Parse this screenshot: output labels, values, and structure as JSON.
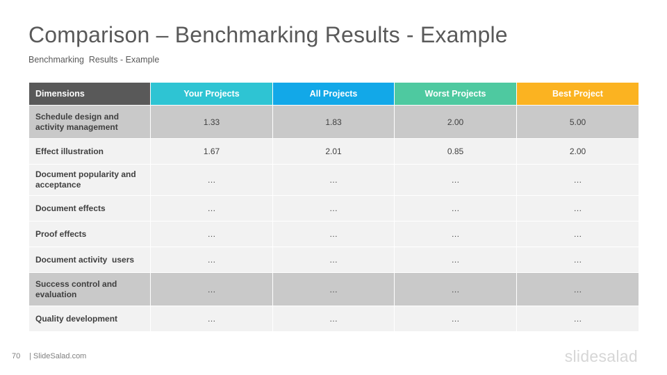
{
  "title": "Comparison – Benchmarking Results - Example",
  "subtitle": "Benchmarking  Results - Example",
  "table": {
    "headers": [
      {
        "label": "Dimensions",
        "color": "#595959"
      },
      {
        "label": "Your Projects",
        "color": "#2ec4d3"
      },
      {
        "label": "All Projects",
        "color": "#12a8e8"
      },
      {
        "label": "Worst Projects",
        "color": "#4ec9a0"
      },
      {
        "label": "Best Project",
        "color": "#fbb321"
      }
    ],
    "rows": [
      {
        "label": "Schedule design and activity management",
        "values": [
          "1.33",
          "1.83",
          "2.00",
          "5.00"
        ],
        "shade": "dark"
      },
      {
        "label": "Effect illustration",
        "values": [
          "1.67",
          "2.01",
          "0.85",
          "2.00"
        ],
        "shade": "light"
      },
      {
        "label": "Document popularity and acceptance",
        "values": [
          "…",
          "…",
          "…",
          "…"
        ],
        "shade": "light"
      },
      {
        "label": "Document effects",
        "values": [
          "…",
          "…",
          "…",
          "…"
        ],
        "shade": "light"
      },
      {
        "label": "Proof effects",
        "values": [
          "…",
          "…",
          "…",
          "…"
        ],
        "shade": "light"
      },
      {
        "label": "Document activity  users",
        "values": [
          "…",
          "…",
          "…",
          "…"
        ],
        "shade": "light"
      },
      {
        "label": "Success control and evaluation",
        "values": [
          "…",
          "…",
          "…",
          "…"
        ],
        "shade": "dark"
      },
      {
        "label": "Quality development",
        "values": [
          "…",
          "…",
          "…",
          "…"
        ],
        "shade": "light"
      }
    ]
  },
  "footer": {
    "page_number": "70",
    "site": "| SlideSalad.com",
    "logo": "slidesalad"
  }
}
